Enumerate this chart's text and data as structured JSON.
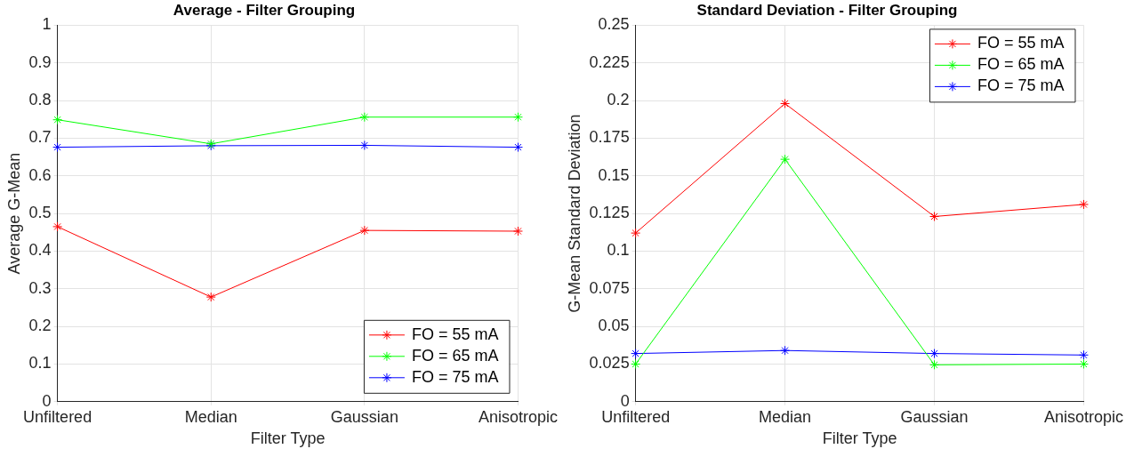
{
  "chart_data": [
    {
      "type": "line",
      "title": "Average - Filter Grouping",
      "xlabel": "Filter Type",
      "ylabel": "Average G-Mean",
      "categories": [
        "Unfiltered",
        "Median",
        "Gaussian",
        "Anisotropic"
      ],
      "series": [
        {
          "name": "FO = 55 mA",
          "color": "#ff0000",
          "values": [
            0.465,
            0.278,
            0.455,
            0.453
          ]
        },
        {
          "name": "FO = 65 mA",
          "color": "#00ff00",
          "values": [
            0.749,
            0.685,
            0.756,
            0.756
          ]
        },
        {
          "name": "FO = 75 mA",
          "color": "#0000ff",
          "values": [
            0.676,
            0.68,
            0.681,
            0.676
          ]
        }
      ],
      "ylim": [
        0,
        1
      ],
      "yticks": [
        0,
        0.1,
        0.2,
        0.3,
        0.4,
        0.5,
        0.6,
        0.7,
        0.8,
        0.9,
        1
      ],
      "grid": true,
      "legend": "bottom right",
      "marker": "cross",
      "line_style": "solid"
    },
    {
      "type": "line",
      "title": "Standard Deviation - Filter Grouping",
      "xlabel": "Filter Type",
      "ylabel": "G-Mean Standard Deviation",
      "categories": [
        "Unfiltered",
        "Median",
        "Gaussian",
        "Anisotropic"
      ],
      "series": [
        {
          "name": "FO = 55 mA",
          "color": "#ff0000",
          "values": [
            0.112,
            0.198,
            0.123,
            0.131
          ]
        },
        {
          "name": "FO = 65 mA",
          "color": "#00ff00",
          "values": [
            0.025,
            0.161,
            0.0245,
            0.025
          ]
        },
        {
          "name": "FO = 75 mA",
          "color": "#0000ff",
          "values": [
            0.032,
            0.034,
            0.032,
            0.031
          ]
        }
      ],
      "ylim": [
        0,
        0.25
      ],
      "yticks": [
        0,
        0.025,
        0.05,
        0.075,
        0.1,
        0.125,
        0.15,
        0.175,
        0.2,
        0.225,
        0.25
      ],
      "grid": true,
      "legend": "top right",
      "marker": "cross",
      "line_style": "solid"
    }
  ]
}
